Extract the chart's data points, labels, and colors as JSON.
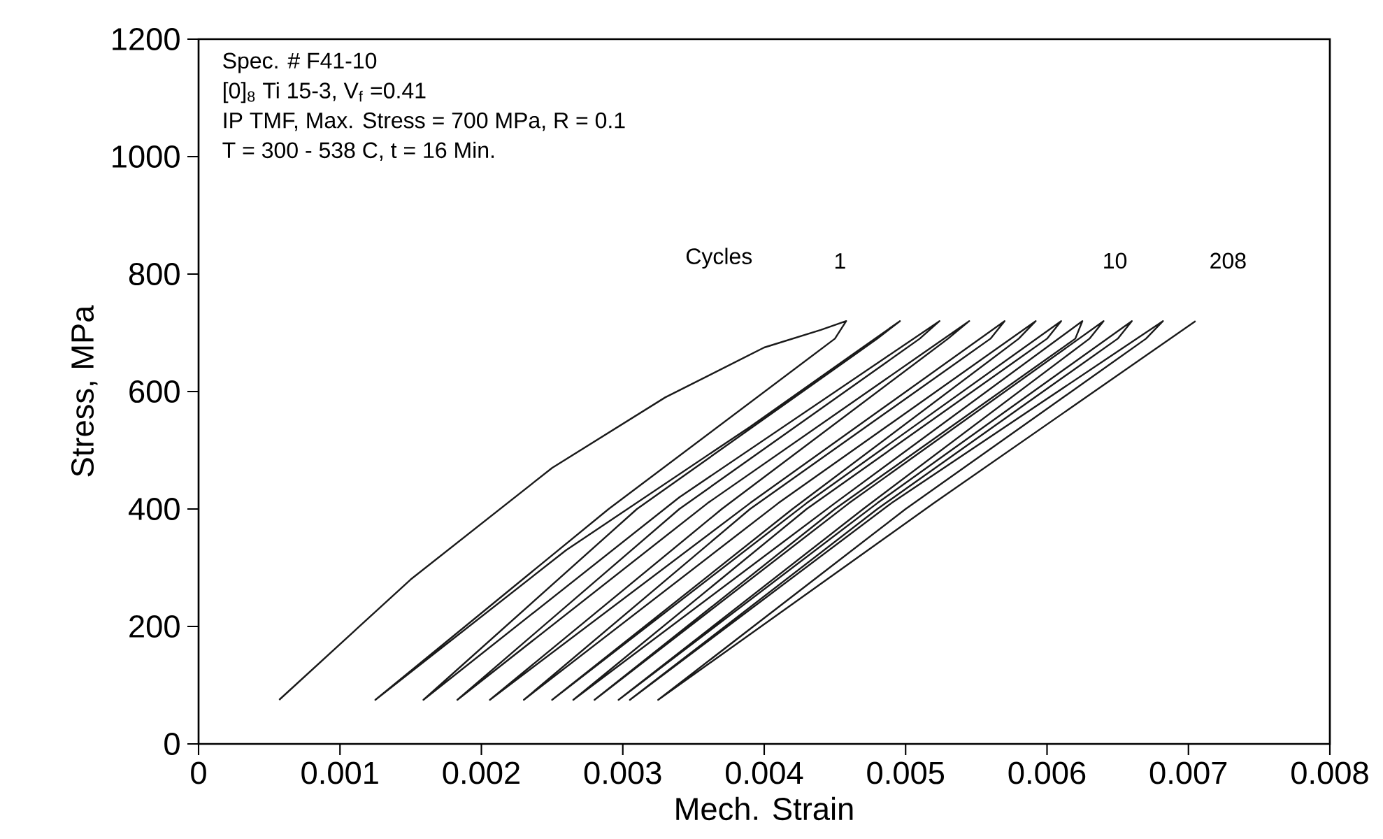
{
  "chart_data": {
    "type": "line",
    "xlabel": "Mech. Strain",
    "ylabel": "Stress, MPa",
    "xlim": [
      0,
      0.008
    ],
    "ylim": [
      0,
      1200
    ],
    "xticks": [
      0,
      0.001,
      0.002,
      0.003,
      0.004,
      0.005,
      0.006,
      0.007,
      0.008
    ],
    "yticks": [
      0,
      200,
      400,
      600,
      800,
      1000,
      1200
    ],
    "marker": "none",
    "line_style": "solid",
    "grid": false,
    "annotations": [
      "Spec. # F41-10",
      "[0]$_{8}$ Ti 15-3, V$_{f}$ =0.41",
      "IP TMF, Max. Stress = 700 MPa, R = 0.1",
      "T = 300 - 538 C,   t = 16 Min.",
      "Cycles",
      "1",
      "10",
      "208"
    ],
    "series": [
      {
        "color": "#1a1a1a",
        "x": [
          0.00057,
          0.0015,
          0.0025,
          0.0033,
          0.004,
          0.0044,
          0.00458,
          0.0045,
          0.0029,
          0.00125,
          0.0026,
          0.0039,
          0.00496,
          0.0048,
          0.0031,
          0.00159,
          0.0034,
          0.00524,
          0.0051,
          0.0034,
          0.00183,
          0.0036,
          0.00545,
          0.0053,
          0.0037,
          0.00206,
          0.0039,
          0.0057,
          0.0056,
          0.0039,
          0.0023,
          0.0041,
          0.00592,
          0.0058,
          0.0042,
          0.0025,
          0.0043,
          0.0061,
          0.006,
          0.0043,
          0.00265,
          0.0045,
          0.00625,
          0.0062,
          0.0045,
          0.0028,
          0.0046,
          0.0064,
          0.0063,
          0.0047,
          0.00297,
          0.0048,
          0.0066,
          0.0065,
          0.0048,
          0.00305,
          0.0049,
          0.00682,
          0.0067,
          0.005,
          0.00325,
          0.0052,
          0.00705
        ],
        "values": [
          75,
          280,
          470,
          590,
          675,
          705,
          720,
          690,
          400,
          75,
          330,
          540,
          720,
          690,
          400,
          75,
          420,
          720,
          690,
          400,
          75,
          410,
          720,
          690,
          400,
          75,
          410,
          720,
          690,
          400,
          75,
          410,
          720,
          690,
          400,
          75,
          410,
          720,
          690,
          400,
          75,
          410,
          720,
          690,
          400,
          75,
          410,
          720,
          690,
          400,
          75,
          410,
          720,
          690,
          400,
          75,
          410,
          720,
          690,
          400,
          75,
          410,
          720
        ]
      }
    ]
  }
}
